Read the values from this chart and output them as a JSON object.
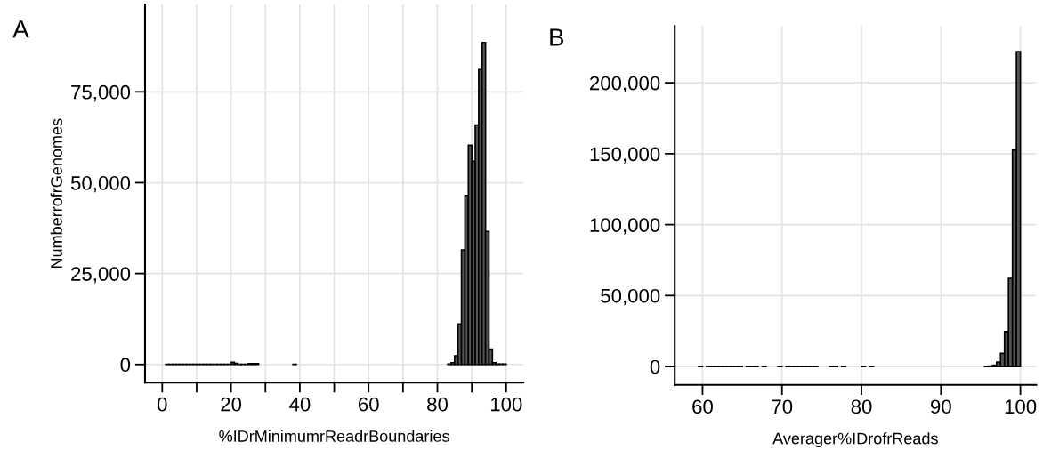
{
  "chart_data": [
    {
      "type": "histogram",
      "title": "A",
      "xlabel": "%IDrMinimumrReadrBoundaries",
      "ylabel": "NumberrofrGenomes",
      "color": "#555555",
      "grid": true,
      "bins": [
        0,
        1,
        2,
        3,
        4,
        5,
        6,
        7,
        8,
        9,
        10,
        11,
        12,
        13,
        14,
        15,
        16,
        17,
        18,
        19,
        20,
        21,
        22,
        23,
        24,
        25,
        26,
        27,
        28,
        29,
        30,
        31,
        32,
        33,
        34,
        35,
        36,
        37,
        38,
        39,
        40,
        41,
        42,
        43,
        44,
        45,
        46,
        47,
        48,
        49,
        50,
        51,
        52,
        53,
        54,
        55,
        56,
        57,
        58,
        59,
        60,
        61,
        62,
        63,
        64,
        65,
        66,
        67,
        68,
        69,
        70,
        71,
        72,
        73,
        74,
        75,
        76,
        77,
        78,
        79,
        80,
        81,
        82,
        83,
        84,
        85,
        86,
        87,
        88,
        89,
        90,
        91,
        92,
        93,
        94,
        95,
        96,
        97,
        98,
        99,
        100
      ],
      "values": [
        0,
        30,
        30,
        30,
        30,
        30,
        30,
        30,
        30,
        30,
        30,
        30,
        30,
        30,
        30,
        30,
        30,
        30,
        30,
        30,
        600,
        300,
        30,
        30,
        30,
        200,
        200,
        200,
        0,
        0,
        0,
        0,
        0,
        0,
        0,
        0,
        0,
        0,
        30,
        0,
        0,
        0,
        0,
        0,
        0,
        0,
        0,
        0,
        0,
        0,
        0,
        0,
        0,
        0,
        0,
        0,
        0,
        0,
        0,
        0,
        0,
        0,
        0,
        0,
        0,
        0,
        0,
        0,
        0,
        0,
        0,
        0,
        0,
        0,
        0,
        0,
        0,
        0,
        0,
        0,
        0,
        0,
        0,
        100,
        500,
        2400,
        11100,
        31500,
        46500,
        60300,
        55900,
        65900,
        81100,
        88600,
        36600,
        4200,
        500,
        100,
        100,
        100
      ],
      "xlim": [
        -5,
        105
      ],
      "ylim": [
        -5000,
        99000
      ],
      "xticks": [
        0,
        {
          "value": 10,
          "label": null
        },
        20,
        {
          "value": 30,
          "label": null
        },
        40,
        {
          "value": 50,
          "label": null
        },
        60,
        {
          "value": 70,
          "label": null
        },
        80,
        {
          "value": 90,
          "label": null
        },
        100
      ],
      "yticks": [
        0,
        {
          "value": 25000,
          "label": "25,000"
        },
        {
          "value": 50000,
          "label": "50,000"
        },
        {
          "value": 75000,
          "label": "75,000"
        }
      ]
    },
    {
      "type": "histogram",
      "title": "B",
      "xlabel": "Averager%IDrofrReads",
      "color": "#555555",
      "grid": true,
      "bins": [
        59.5,
        60,
        60.5,
        61,
        61.5,
        62,
        62.5,
        63,
        63.5,
        64,
        64.5,
        65,
        65.5,
        66,
        66.5,
        67,
        67.5,
        68,
        68.5,
        69,
        69.5,
        70,
        70.5,
        71,
        71.5,
        72,
        72.5,
        73,
        73.5,
        74,
        74.5,
        75,
        75.5,
        76,
        76.5,
        77,
        77.5,
        78,
        78.5,
        79,
        79.5,
        80,
        80.5,
        81,
        81.5,
        82,
        82.5,
        83,
        83.5,
        84,
        84.5,
        85,
        85.5,
        86,
        86.5,
        87,
        87.5,
        88,
        88.5,
        89,
        89.5,
        90,
        90.5,
        91,
        91.5,
        92,
        92.5,
        93,
        93.5,
        94,
        94.5,
        95,
        95.5,
        96,
        96.5,
        97,
        97.5,
        98,
        98.5,
        99,
        99.5,
        100
      ],
      "values": [
        50,
        0,
        50,
        50,
        50,
        50,
        50,
        50,
        50,
        50,
        50,
        0,
        50,
        50,
        50,
        0,
        50,
        0,
        0,
        0,
        50,
        0,
        50,
        50,
        50,
        50,
        50,
        50,
        50,
        50,
        0,
        0,
        0,
        50,
        50,
        0,
        50,
        0,
        0,
        0,
        0,
        50,
        0,
        50,
        0,
        0,
        0,
        0,
        0,
        0,
        0,
        0,
        0,
        0,
        0,
        0,
        0,
        0,
        0,
        0,
        0,
        0,
        0,
        0,
        0,
        0,
        0,
        0,
        0,
        0,
        0,
        0,
        100,
        300,
        1000,
        3100,
        9200,
        24600,
        62100,
        152700,
        222000
      ],
      "xlim": [
        56.5,
        102
      ],
      "ylim": [
        -13000,
        240000
      ],
      "xticks": [
        60,
        70,
        80,
        90,
        100
      ],
      "yticks": [
        0,
        {
          "value": 50000,
          "label": "50,000"
        },
        {
          "value": 100000,
          "label": "100,000"
        },
        {
          "value": 150000,
          "label": "150,000"
        },
        {
          "value": 200000,
          "label": "200,000"
        }
      ]
    }
  ]
}
